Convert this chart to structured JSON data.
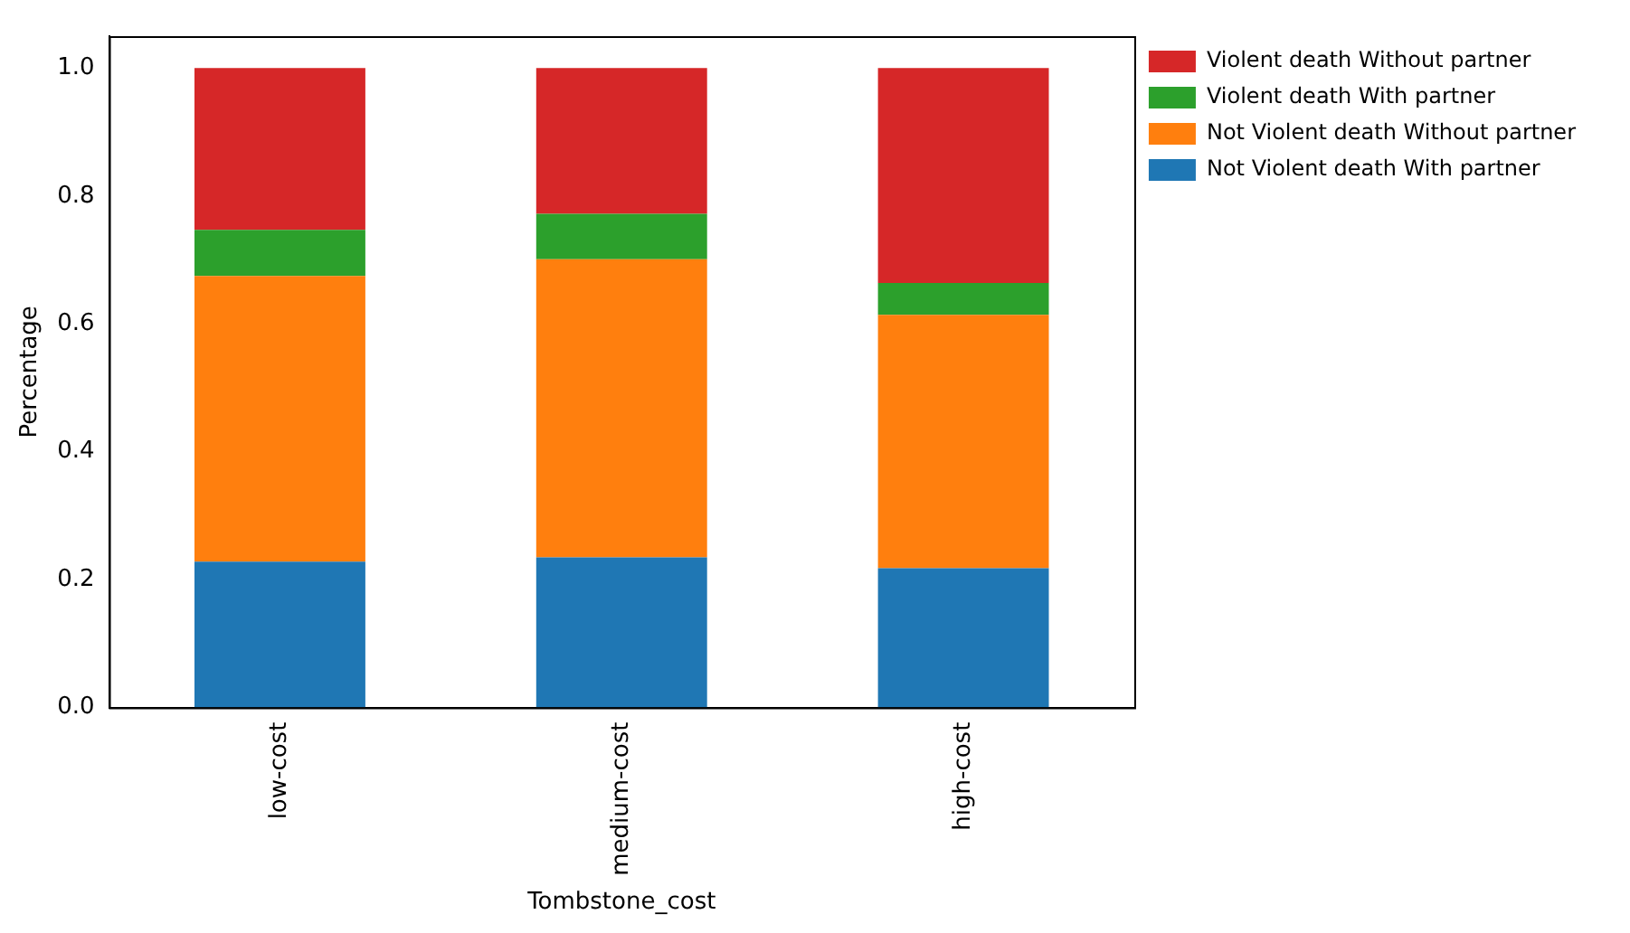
{
  "chart_data": {
    "type": "bar",
    "stacked": true,
    "xlabel": "Tombstone_cost",
    "ylabel": "Percentage",
    "categories": [
      "low-cost",
      "medium-cost",
      "high-cost"
    ],
    "series": [
      {
        "name": "Not Violent death With partner",
        "color": "#1f77b4",
        "values": [
          0.228,
          0.235,
          0.218
        ]
      },
      {
        "name": "Not Violent death Without partner",
        "color": "#ff7f0e",
        "values": [
          0.447,
          0.466,
          0.396
        ]
      },
      {
        "name": "Violent death With partner",
        "color": "#2ca02c",
        "values": [
          0.072,
          0.071,
          0.05
        ]
      },
      {
        "name": "Violent death Without partner",
        "color": "#d62728",
        "values": [
          0.253,
          0.228,
          0.336
        ]
      }
    ],
    "ylim": [
      0,
      1.05
    ],
    "yticks": [
      {
        "value": 0,
        "label": "0.0"
      },
      {
        "value": 0.2,
        "label": "0.2"
      },
      {
        "value": 0.4,
        "label": "0.4"
      },
      {
        "value": 0.6,
        "label": "0.6"
      },
      {
        "value": 0.8,
        "label": "0.8"
      },
      {
        "value": 1.0,
        "label": "1.0"
      }
    ],
    "grid": false,
    "legend": "right"
  }
}
